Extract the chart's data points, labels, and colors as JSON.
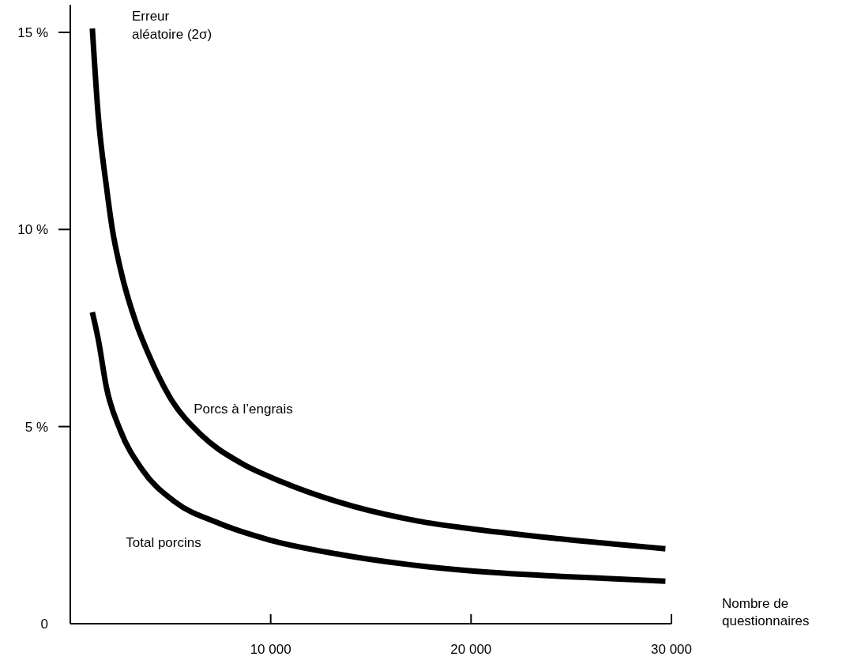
{
  "chart_data": {
    "type": "line",
    "ylabel": "Erreur aléatoire (2σ)",
    "xlabel": "Nombre de questionnaires",
    "xlim": [
      0,
      30000
    ],
    "ylim": [
      0,
      15.7
    ],
    "xticks": [
      {
        "value": 10000,
        "label": "10 000"
      },
      {
        "value": 20000,
        "label": "20 000"
      },
      {
        "value": 30000,
        "label": "30 000"
      }
    ],
    "yticks": [
      {
        "value": 0,
        "label": "0"
      },
      {
        "value": 5,
        "label": "5 %"
      },
      {
        "value": 10,
        "label": "10 %"
      },
      {
        "value": 15,
        "label": "15 %"
      }
    ],
    "grid": false,
    "marker": "none",
    "line_style": "solid",
    "series": [
      {
        "name": "Porcs à l’engrais",
        "color": "#000000",
        "x": [
          1100,
          1400,
          1800,
          2100,
          2500,
          3300,
          3850,
          4950,
          6550,
          8500,
          10550,
          13300,
          17400,
          19800,
          24500,
          29700
        ],
        "values": [
          15.1,
          12.85,
          11.1,
          10.0,
          9.0,
          7.6,
          6.9,
          5.76,
          4.78,
          4.08,
          3.6,
          3.1,
          2.6,
          2.42,
          2.15,
          1.9
        ]
      },
      {
        "name": "Total porcins",
        "color": "#000000",
        "x": [
          1100,
          1400,
          1800,
          2500,
          3600,
          5200,
          7400,
          9900,
          13300,
          17400,
          19800,
          24500,
          29700
        ],
        "values": [
          7.9,
          7.2,
          6.0,
          4.9,
          3.9,
          3.1,
          2.55,
          2.13,
          1.77,
          1.47,
          1.35,
          1.2,
          1.08
        ]
      }
    ]
  }
}
